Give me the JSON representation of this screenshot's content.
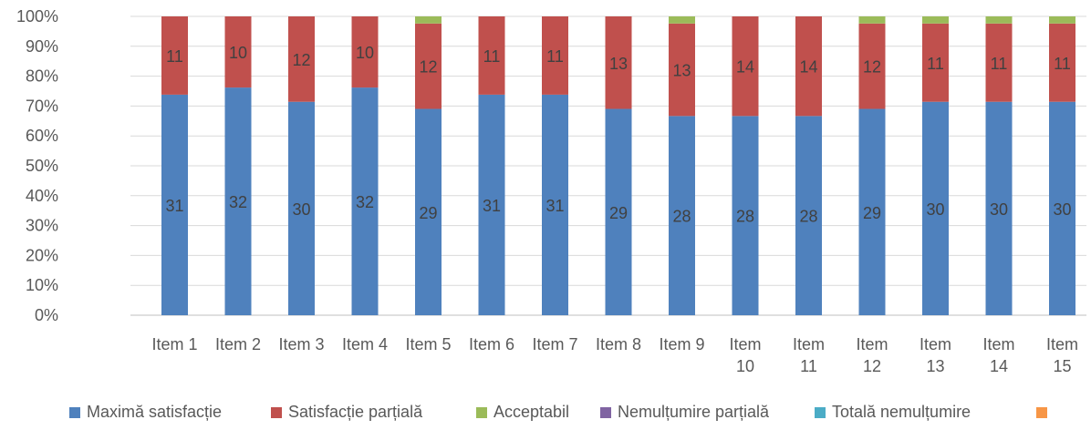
{
  "chart_data": {
    "type": "bar",
    "stacked": "percent",
    "categories": [
      "Item 1",
      "Item 2",
      "Item 3",
      "Item 4",
      "Item 5",
      "Item 6",
      "Item 7",
      "Item 8",
      "Item 9",
      "Item 10",
      "Item 11",
      "Item 12",
      "Item 13",
      "Item 14",
      "Item 15"
    ],
    "series": [
      {
        "name": "Maximă satisfacție",
        "color": "#4F81BD",
        "values": [
          31,
          32,
          30,
          32,
          29,
          31,
          31,
          29,
          28,
          28,
          28,
          29,
          30,
          30,
          30
        ],
        "show_labels": true
      },
      {
        "name": "Satisfacție parțială",
        "color": "#C0504D",
        "values": [
          11,
          10,
          12,
          10,
          12,
          11,
          11,
          13,
          13,
          14,
          14,
          12,
          11,
          11,
          11
        ],
        "show_labels": true
      },
      {
        "name": "Acceptabil",
        "color": "#9BBB59",
        "values": [
          0,
          0,
          0,
          0,
          1,
          0,
          0,
          0,
          1,
          0,
          0,
          1,
          1,
          1,
          1
        ],
        "show_labels": false
      },
      {
        "name": "Nemulțumire parțială",
        "color": "#8064A2",
        "values": [
          0,
          0,
          0,
          0,
          0,
          0,
          0,
          0,
          0,
          0,
          0,
          0,
          0,
          0,
          0
        ],
        "show_labels": false
      },
      {
        "name": "Totală nemulțumire",
        "color": "#4BACC6",
        "values": [
          0,
          0,
          0,
          0,
          0,
          0,
          0,
          0,
          0,
          0,
          0,
          0,
          0,
          0,
          0
        ],
        "show_labels": false
      },
      {
        "name": "",
        "color": "#F79646",
        "values": [
          0,
          0,
          0,
          0,
          0,
          0,
          0,
          0,
          0,
          0,
          0,
          0,
          0,
          0,
          0
        ],
        "show_labels": false
      }
    ],
    "y_ticks": [
      "0%",
      "10%",
      "20%",
      "30%",
      "40%",
      "50%",
      "60%",
      "70%",
      "80%",
      "90%",
      "100%"
    ],
    "ylim": [
      0,
      100
    ],
    "legend_position": "bottom",
    "grid": true
  }
}
